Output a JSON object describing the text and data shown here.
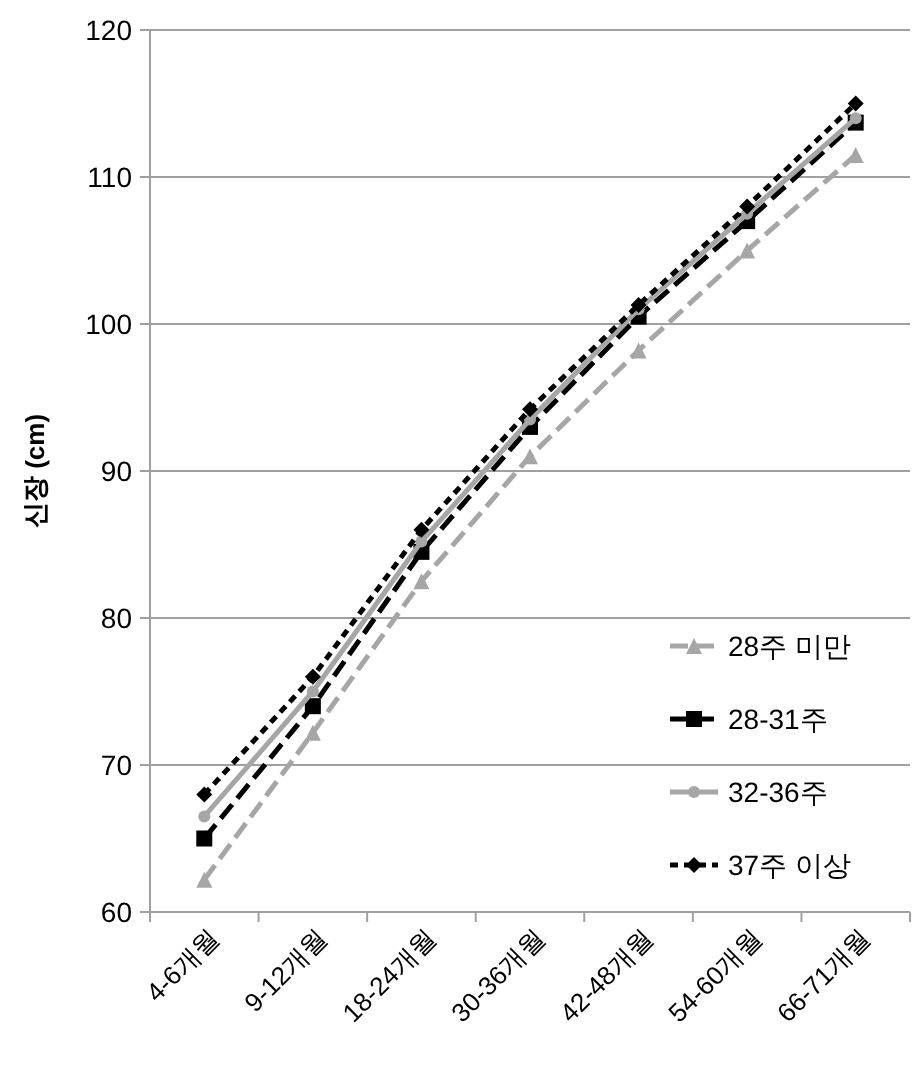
{
  "chart_data": {
    "type": "line",
    "ylabel": "신장 (cm)",
    "categories": [
      "4-6개월",
      "9-12개월",
      "18-24개월",
      "30-36개월",
      "42-48개월",
      "54-60개월",
      "66-71개월"
    ],
    "series": [
      {
        "name": "28주 미만",
        "color": "#a6a6a6",
        "marker": "triangle",
        "line_style": "dashed",
        "values": [
          62.2,
          72.2,
          82.5,
          91,
          98.2,
          105,
          111.5
        ]
      },
      {
        "name": "28-31주",
        "color": "#000000",
        "marker": "square",
        "line_style": "dashed",
        "values": [
          65,
          74,
          84.5,
          93,
          100.5,
          107,
          113.7
        ]
      },
      {
        "name": "32-36주",
        "color": "#a6a6a6",
        "marker": "circle",
        "line_style": "solid",
        "values": [
          66.5,
          75,
          85.2,
          93.5,
          101,
          107.5,
          114
        ]
      },
      {
        "name": "37주 이상",
        "color": "#000000",
        "marker": "diamond",
        "line_style": "dotted",
        "values": [
          68,
          76,
          86,
          94.2,
          101.3,
          108,
          115
        ]
      }
    ],
    "ylim": [
      60,
      120
    ],
    "yticks": [
      60,
      70,
      80,
      90,
      100,
      110,
      120
    ],
    "grid": "y",
    "legend": "bottom right"
  }
}
